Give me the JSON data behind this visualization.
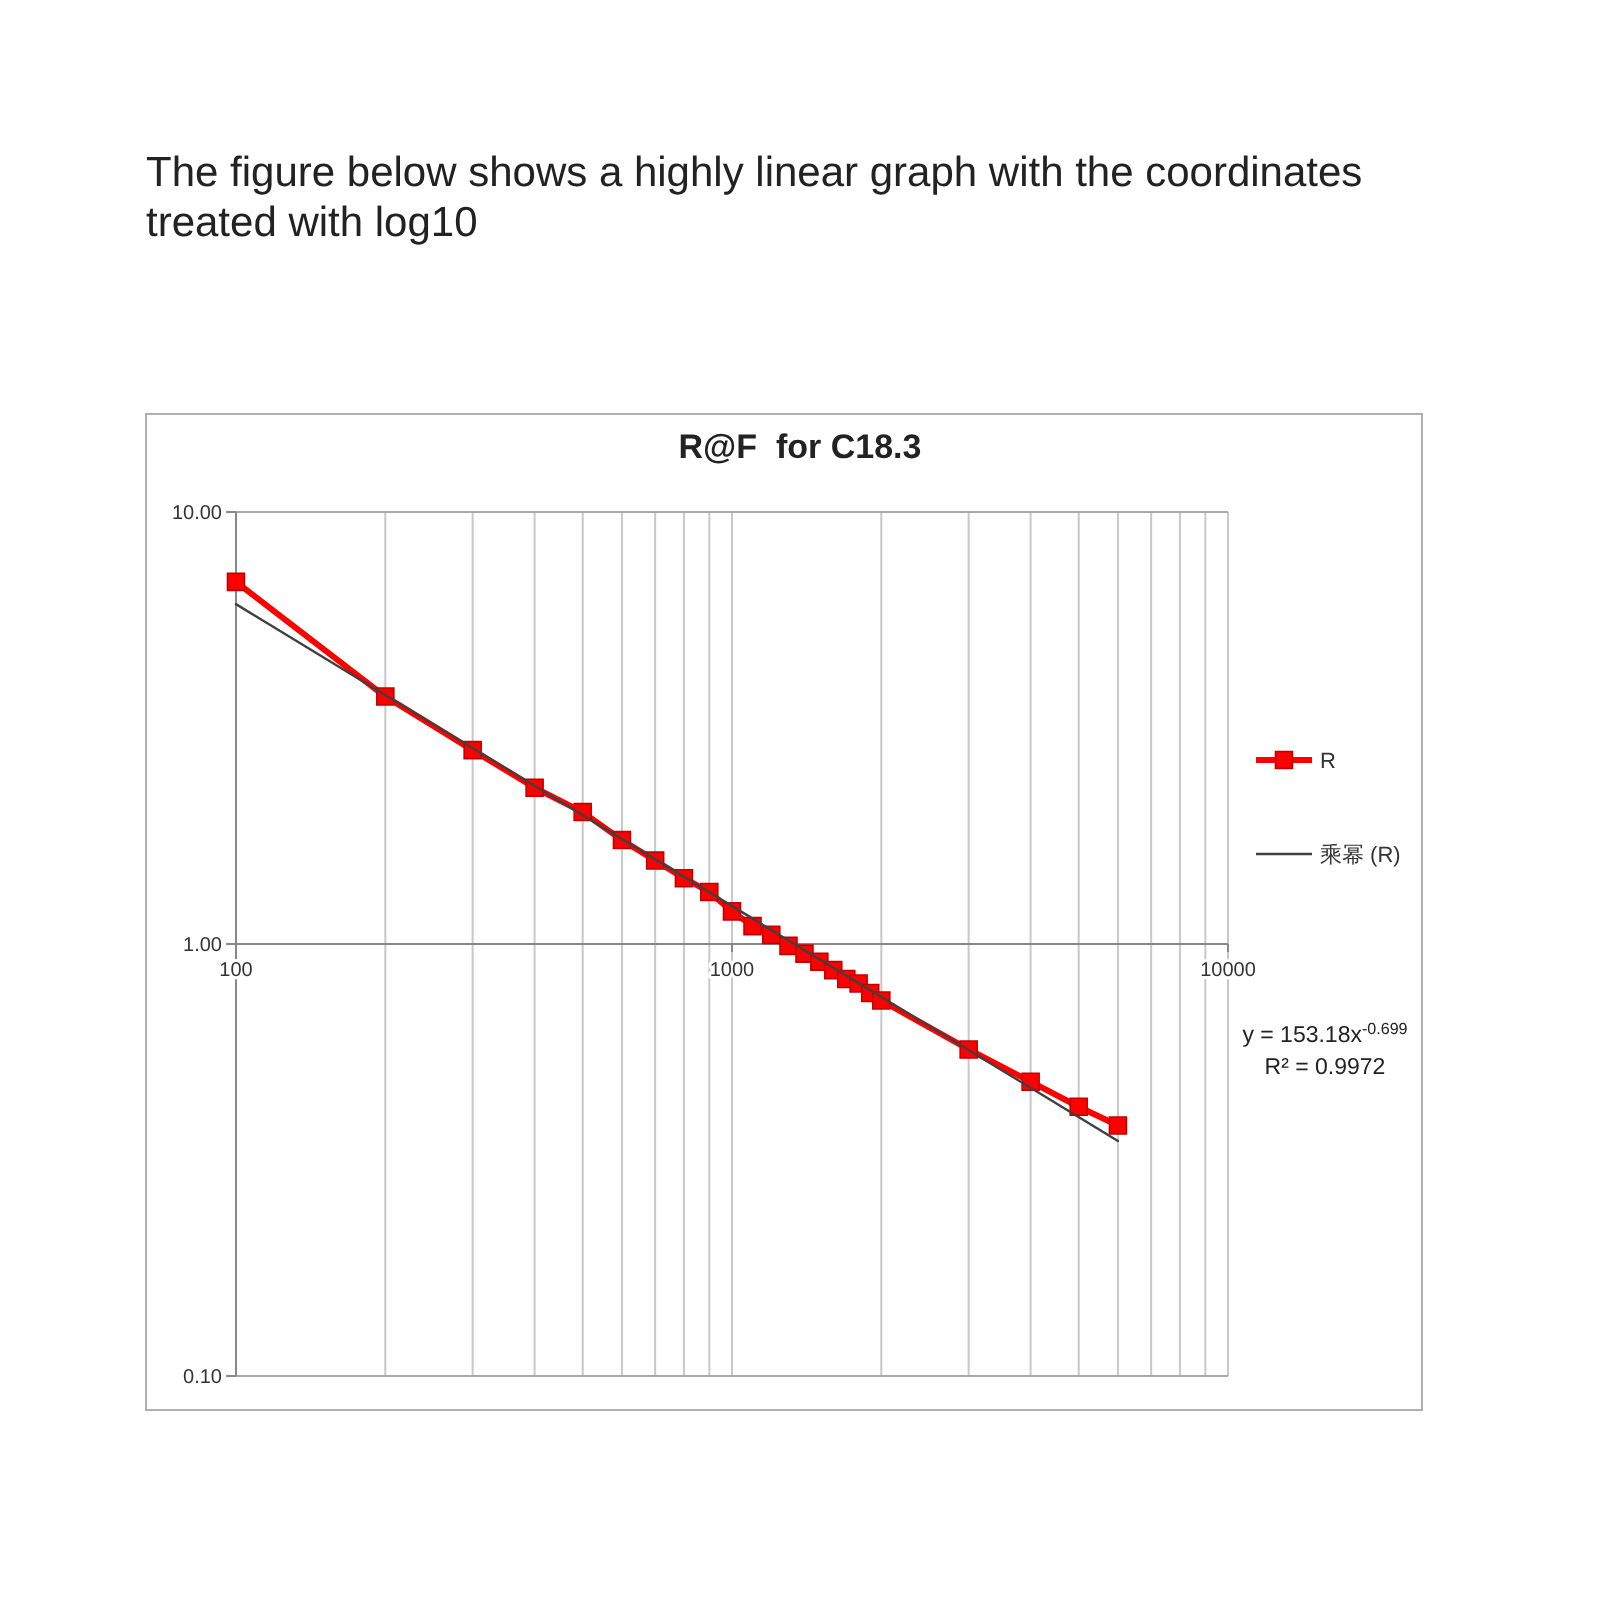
{
  "chart_data": {
    "type": "line",
    "title": "R@F  for C18.3",
    "x": [
      100,
      200,
      300,
      400,
      500,
      600,
      700,
      800,
      900,
      1000,
      1100,
      1200,
      1300,
      1400,
      1500,
      1600,
      1700,
      1800,
      1900,
      2000,
      3000,
      4000,
      5000,
      6000
    ],
    "series": [
      {
        "name": "R",
        "color": "#ff0000",
        "values": [
          6.89,
          3.74,
          2.81,
          2.3,
          2.02,
          1.74,
          1.56,
          1.42,
          1.32,
          1.19,
          1.1,
          1.05,
          0.99,
          0.95,
          0.91,
          0.87,
          0.83,
          0.81,
          0.77,
          0.74,
          0.57,
          0.48,
          0.42,
          0.38
        ]
      },
      {
        "name": "乘幂 (R)",
        "type": "line",
        "color": "#404040",
        "marker": "none",
        "x": [
          100,
          6000
        ],
        "values": [
          6.12,
          0.35
        ]
      }
    ],
    "marker": "square",
    "log": "xy",
    "grid": true,
    "legend": "right",
    "xlim": [
      100,
      10000
    ],
    "ylim": [
      0.1,
      10
    ],
    "xticks": [
      100,
      {
        "value": 200,
        "label": null
      },
      {
        "value": 300,
        "label": null
      },
      {
        "value": 400,
        "label": null
      },
      {
        "value": 500,
        "label": null
      },
      {
        "value": 600,
        "label": null
      },
      {
        "value": 700,
        "label": null
      },
      {
        "value": 800,
        "label": null
      },
      {
        "value": 900,
        "label": null
      },
      1000,
      {
        "value": 2000,
        "label": null
      },
      {
        "value": 3000,
        "label": null
      },
      {
        "value": 4000,
        "label": null
      },
      {
        "value": 5000,
        "label": null
      },
      {
        "value": 6000,
        "label": null
      },
      {
        "value": 7000,
        "label": null
      },
      {
        "value": 8000,
        "label": null
      },
      {
        "value": 9000,
        "label": null
      },
      10000
    ],
    "yticks": [
      {
        "value": 0.1,
        "label": "0.10"
      },
      {
        "value": 1,
        "label": "1.00"
      },
      {
        "value": 10,
        "label": "10.00"
      }
    ],
    "annotations": [
      "The figure below shows a highly linear graph with the coordinates treated with log10",
      "y = 153.18x$^{-0.699}$",
      "R² = 0.9972"
    ]
  }
}
